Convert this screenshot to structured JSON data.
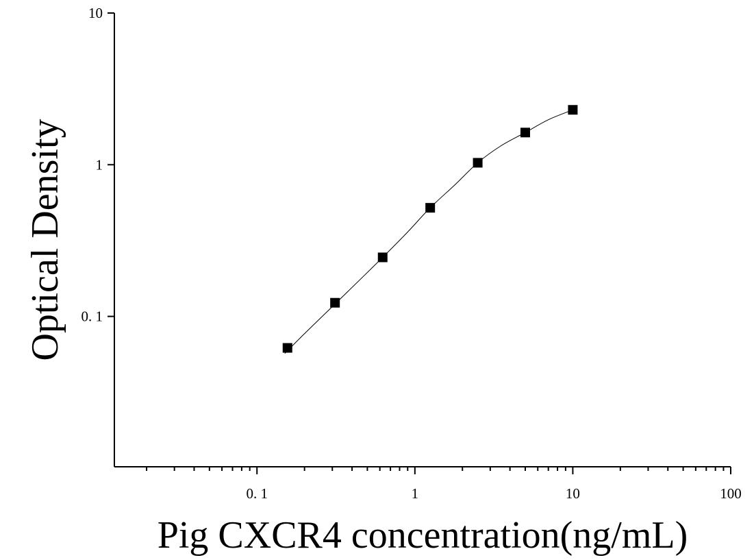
{
  "chart_data": {
    "type": "scatter",
    "title": "",
    "xlabel": "Pig CXCR4 concentration(ng/mL)",
    "ylabel": "Optical Density",
    "x_scale": "log",
    "y_scale": "log",
    "xlim": [
      0.0125,
      100
    ],
    "ylim": [
      0.0102,
      10
    ],
    "x_tick_labels": [
      {
        "value": 0.1,
        "label": "0. 1"
      },
      {
        "value": 1,
        "label": "1"
      },
      {
        "value": 10,
        "label": "10"
      },
      {
        "value": 100,
        "label": "100"
      }
    ],
    "y_tick_labels": [
      {
        "value": 0.1,
        "label": "0. 1"
      },
      {
        "value": 1,
        "label": "1"
      },
      {
        "value": 10,
        "label": "10"
      }
    ],
    "grid": false,
    "legend": "none",
    "series": [
      {
        "marker": "square",
        "color": "#000000",
        "x": [
          0.156,
          0.312,
          0.625,
          1.25,
          2.5,
          5,
          10
        ],
        "y": [
          0.062,
          0.123,
          0.245,
          0.52,
          1.03,
          1.63,
          2.3
        ]
      }
    ],
    "fit_curve": {
      "color": "#000000",
      "x": [
        0.15,
        0.2,
        0.3,
        0.45,
        0.625,
        0.9,
        1.25,
        1.8,
        2.5,
        3.5,
        5,
        7,
        10
      ],
      "y": [
        0.057,
        0.077,
        0.116,
        0.175,
        0.245,
        0.36,
        0.52,
        0.74,
        1.03,
        1.33,
        1.63,
        1.98,
        2.3
      ]
    }
  }
}
